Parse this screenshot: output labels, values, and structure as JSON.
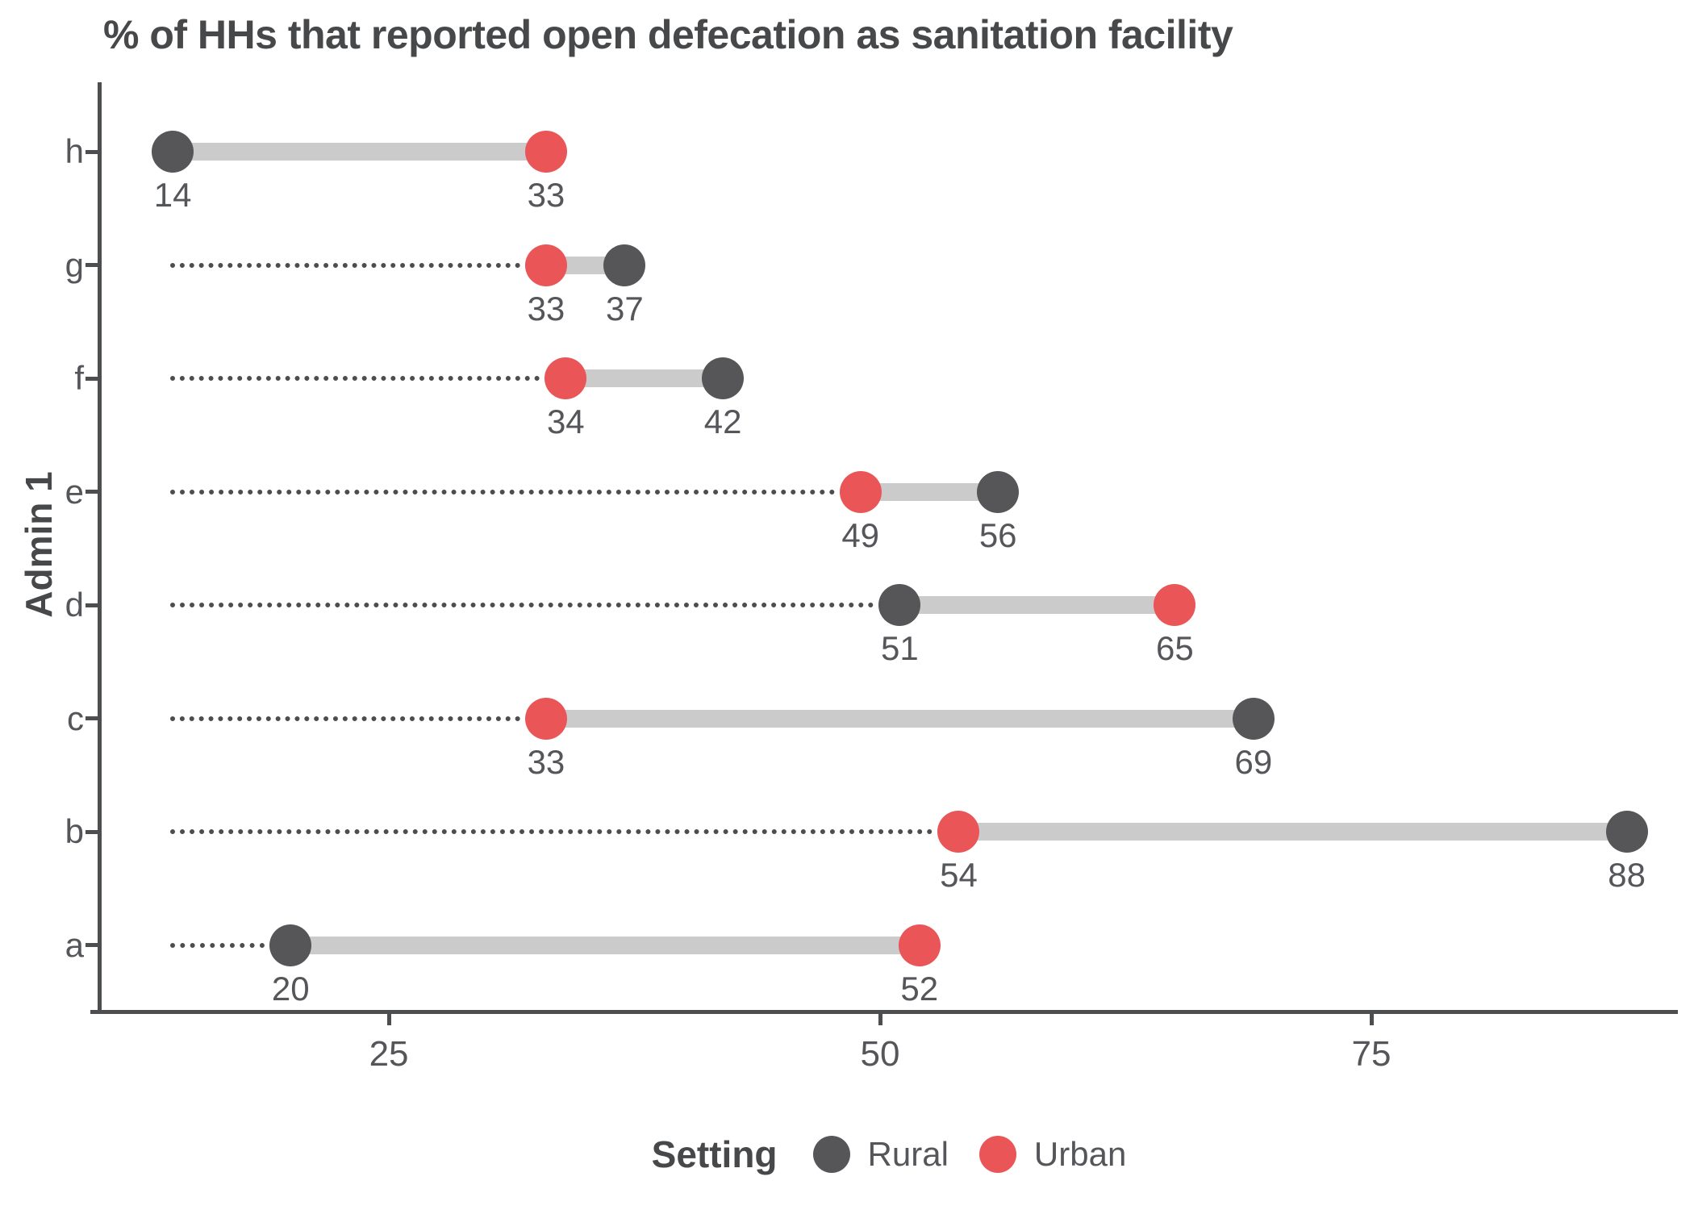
{
  "chart_data": {
    "type": "dumbbell",
    "title": "% of HHs that reported open defecation as sanitation facility",
    "xlabel": "",
    "ylabel": "Admin 1",
    "categories": [
      "h",
      "g",
      "f",
      "e",
      "d",
      "c",
      "b",
      "a"
    ],
    "series": [
      {
        "name": "Rural",
        "color": "#565659",
        "values": [
          14,
          37,
          42,
          56,
          51,
          69,
          88,
          20
        ]
      },
      {
        "name": "Urban",
        "color": "#EA5558",
        "values": [
          33,
          33,
          34,
          49,
          65,
          33,
          54,
          52
        ]
      }
    ],
    "x_ticks": [
      25,
      50,
      75
    ],
    "x_domain": [
      10.3,
      90.6
    ],
    "leader_origin": 14,
    "grid": false,
    "legend": {
      "title": "Setting",
      "position": "bottom"
    },
    "styles": {
      "connector_color": "#CBCBCB",
      "leader_color": "#4C4D4F",
      "axis_color": "#4D4E50",
      "text_color": "#55565A",
      "title_color": "#47484A",
      "background": "#FFFFFF"
    }
  }
}
